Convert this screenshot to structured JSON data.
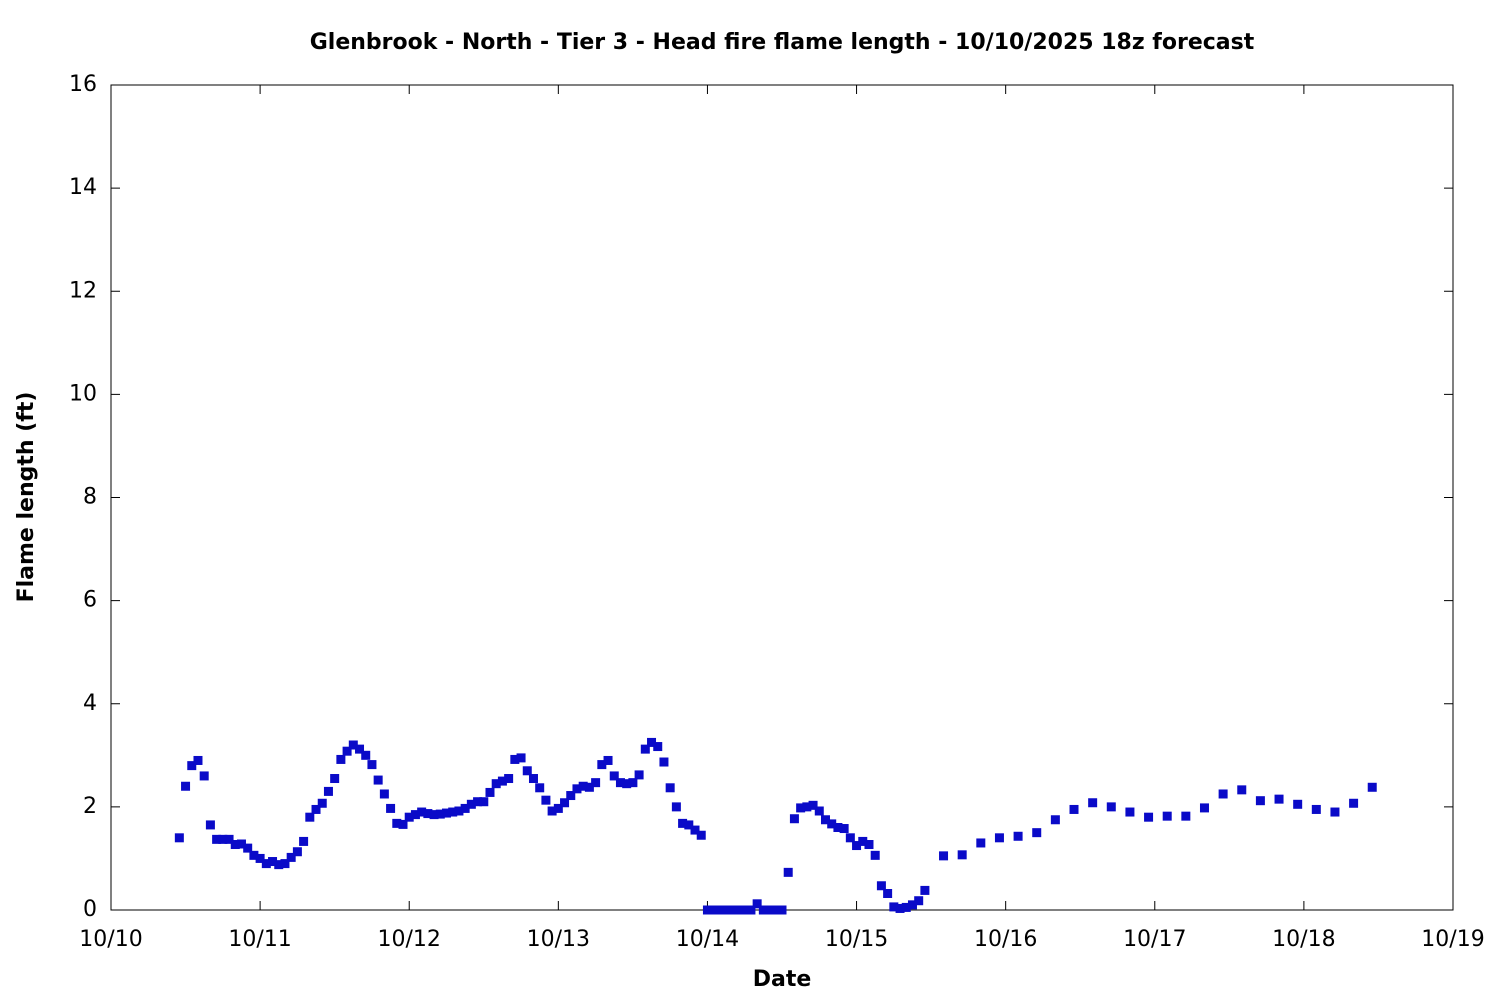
{
  "chart_data": {
    "type": "scatter",
    "title": "Glenbrook - North - Tier 3 - Head fire flame length - 10/10/2025 18z forecast",
    "x_label": "Date",
    "y_label": "Flame length (ft)",
    "xlim": [
      0,
      216
    ],
    "xticks": [
      {
        "value": 0,
        "label": "10/10"
      },
      {
        "value": 24,
        "label": "10/11"
      },
      {
        "value": 48,
        "label": "10/12"
      },
      {
        "value": 72,
        "label": "10/13"
      },
      {
        "value": 96,
        "label": "10/14"
      },
      {
        "value": 120,
        "label": "10/15"
      },
      {
        "value": 144,
        "label": "10/16"
      },
      {
        "value": 168,
        "label": "10/17"
      },
      {
        "value": 192,
        "label": "10/18"
      },
      {
        "value": 216,
        "label": "10/19"
      }
    ],
    "ylim": [
      0,
      16
    ],
    "yticks": [
      0,
      2,
      4,
      6,
      8,
      10,
      12,
      14,
      16
    ],
    "color": "#0a0ac8",
    "x": [
      11,
      12,
      13,
      14,
      15,
      16,
      17,
      18,
      19,
      20,
      21,
      22,
      23,
      24,
      25,
      26,
      27,
      28,
      29,
      30,
      31,
      32,
      33,
      34,
      35,
      36,
      37,
      38,
      39,
      40,
      41,
      42,
      43,
      44,
      45,
      46,
      47,
      48,
      49,
      50,
      51,
      52,
      53,
      54,
      55,
      56,
      57,
      58,
      59,
      60,
      61,
      62,
      63,
      64,
      65,
      66,
      67,
      68,
      69,
      70,
      71,
      72,
      73,
      74,
      75,
      76,
      77,
      78,
      79,
      80,
      81,
      82,
      83,
      84,
      85,
      86,
      87,
      88,
      89,
      90,
      91,
      92,
      93,
      94,
      95,
      96,
      97,
      98,
      99,
      100,
      101,
      102,
      103,
      104,
      105,
      106,
      107,
      108,
      109,
      110,
      111,
      112,
      113,
      114,
      115,
      116,
      117,
      118,
      119,
      120,
      121,
      122,
      123,
      124,
      125,
      126,
      127,
      128,
      129,
      130,
      131,
      134,
      137,
      140,
      143,
      146,
      149,
      152,
      155,
      158,
      161,
      164,
      167,
      170,
      173,
      176,
      179,
      182,
      185,
      188,
      191,
      194,
      197,
      200,
      203
    ],
    "values": [
      1.4,
      2.4,
      2.8,
      2.9,
      2.6,
      1.65,
      1.37,
      1.37,
      1.37,
      1.27,
      1.28,
      1.2,
      1.06,
      1.0,
      0.9,
      0.94,
      0.88,
      0.9,
      1.02,
      1.13,
      1.33,
      1.8,
      1.95,
      2.07,
      2.3,
      2.55,
      2.92,
      3.08,
      3.2,
      3.12,
      3.0,
      2.82,
      2.52,
      2.25,
      1.97,
      1.68,
      1.66,
      1.8,
      1.85,
      1.9,
      1.87,
      1.85,
      1.86,
      1.88,
      1.9,
      1.92,
      1.97,
      2.05,
      2.1,
      2.1,
      2.28,
      2.45,
      2.5,
      2.55,
      2.92,
      2.95,
      2.7,
      2.55,
      2.37,
      2.13,
      1.92,
      1.97,
      2.08,
      2.22,
      2.35,
      2.4,
      2.38,
      2.47,
      2.82,
      2.9,
      2.6,
      2.47,
      2.45,
      2.47,
      2.62,
      3.12,
      3.25,
      3.17,
      2.87,
      2.37,
      2.0,
      1.68,
      1.65,
      1.55,
      1.45,
      0,
      0,
      0,
      0,
      0,
      0,
      0,
      0,
      0.12,
      0,
      0,
      0,
      0,
      0.73,
      1.77,
      1.98,
      2.0,
      2.03,
      1.92,
      1.75,
      1.67,
      1.6,
      1.58,
      1.4,
      1.25,
      1.33,
      1.27,
      1.06,
      0.47,
      0.32,
      0.06,
      0.03,
      0.05,
      0.1,
      0.18,
      0.38,
      1.05,
      1.07,
      1.3,
      1.4,
      1.43,
      1.5,
      1.75,
      1.95,
      2.08,
      2.0,
      1.9,
      1.8,
      1.82,
      1.82,
      1.98,
      2.25,
      2.33,
      2.12,
      2.15,
      2.05,
      1.95,
      1.9,
      2.07,
      2.38
    ]
  }
}
